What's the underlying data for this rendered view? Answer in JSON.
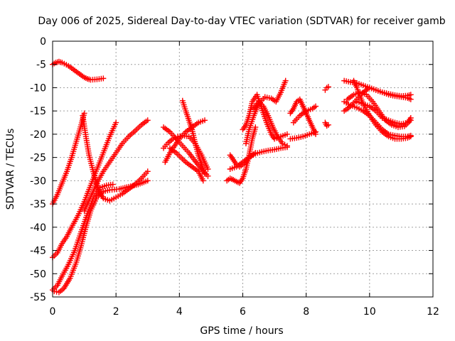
{
  "chart_data": {
    "type": "scatter",
    "title": "Day 006 of 2025, Sidereal Day-to-day VTEC variation (SDTVAR) for receiver gamb",
    "xlabel": "GPS time / hours",
    "ylabel": "SDTVAR / TECUs",
    "xlim": [
      0,
      12
    ],
    "ylim": [
      -55,
      0
    ],
    "xticks": [
      "0",
      "2",
      "4",
      "6",
      "8",
      "10",
      "12"
    ],
    "yticks": [
      "0",
      "-5",
      "-10",
      "-15",
      "-20",
      "-25",
      "-30",
      "-35",
      "-40",
      "-45",
      "-50",
      "-55"
    ],
    "grid": true,
    "marker": "plus",
    "color": "#ff0000",
    "series": [
      {
        "x": [
          0.0,
          0.1,
          0.2,
          0.3,
          0.5,
          0.7,
          0.9,
          1.0,
          1.1,
          1.2,
          1.4,
          1.6
        ],
        "y": [
          -5.0,
          -4.6,
          -4.4,
          -4.6,
          -5.3,
          -6.3,
          -7.3,
          -7.8,
          -8.1,
          -8.3,
          -8.2,
          -8.0
        ]
      },
      {
        "x": [
          0.0,
          0.15,
          0.3,
          0.45,
          0.6,
          0.75,
          0.9,
          1.0
        ],
        "y": [
          -35.0,
          -33.0,
          -30.5,
          -28.0,
          -25.0,
          -21.5,
          -18.0,
          -15.5
        ]
      },
      {
        "x": [
          0.95,
          1.05,
          1.15,
          1.3,
          1.45,
          1.6,
          1.8,
          2.0,
          2.2,
          2.4,
          2.6,
          2.8,
          3.0
        ],
        "y": [
          -16.0,
          -20.5,
          -24.5,
          -28.5,
          -32.0,
          -33.8,
          -34.3,
          -33.6,
          -32.8,
          -31.8,
          -30.8,
          -29.5,
          -28.0
        ]
      },
      {
        "x": [
          0.0,
          0.15,
          0.3,
          0.45,
          0.6,
          0.8,
          1.0,
          1.2,
          1.4,
          1.6,
          1.8,
          2.0
        ],
        "y": [
          -46.5,
          -45.5,
          -43.5,
          -42.0,
          -40.0,
          -37.5,
          -34.5,
          -31.0,
          -27.5,
          -24.0,
          -20.5,
          -17.5
        ]
      },
      {
        "x": [
          0.0,
          0.15,
          0.3,
          0.5,
          0.7,
          0.9,
          1.1,
          1.3,
          1.5,
          1.7,
          1.9
        ],
        "y": [
          -53.5,
          -52.5,
          -50.5,
          -48.0,
          -45.0,
          -41.0,
          -37.0,
          -33.5,
          -31.5,
          -31.0,
          -30.8
        ]
      },
      {
        "x": [
          0.05,
          0.2,
          0.35,
          0.55,
          0.75,
          0.9,
          1.05,
          1.2,
          1.4,
          1.6,
          1.8,
          2.1,
          2.4,
          2.7,
          3.0
        ],
        "y": [
          -53.8,
          -54.0,
          -53.2,
          -51.0,
          -47.5,
          -44.0,
          -40.0,
          -36.5,
          -33.5,
          -32.3,
          -32.0,
          -31.8,
          -31.3,
          -30.8,
          -30.0
        ]
      },
      {
        "x": [
          1.0,
          1.2,
          1.4,
          1.6,
          1.8,
          2.0,
          2.2,
          2.4,
          2.6,
          2.8,
          3.0
        ],
        "y": [
          -36.5,
          -33.5,
          -30.5,
          -28.0,
          -26.0,
          -24.0,
          -22.0,
          -20.5,
          -19.3,
          -18.0,
          -17.0
        ]
      },
      {
        "x": [
          3.5,
          3.7,
          3.9,
          4.1,
          4.3,
          4.5,
          4.7,
          4.9
        ],
        "y": [
          -18.5,
          -19.5,
          -21.0,
          -22.5,
          -24.0,
          -25.8,
          -27.5,
          -29.0
        ]
      },
      {
        "x": [
          3.5,
          3.65,
          3.8,
          3.95,
          4.1,
          4.3,
          4.5,
          4.7,
          4.9
        ],
        "y": [
          -23.0,
          -21.8,
          -21.0,
          -20.5,
          -20.3,
          -20.5,
          -22.0,
          -24.5,
          -27.5
        ]
      },
      {
        "x": [
          3.55,
          3.7,
          3.85,
          4.0,
          4.2,
          4.4,
          4.6,
          4.8
        ],
        "y": [
          -26.0,
          -24.0,
          -22.5,
          -21.0,
          -19.5,
          -18.5,
          -17.5,
          -17.0
        ]
      },
      {
        "x": [
          3.7,
          3.9,
          4.05,
          4.2,
          4.4,
          4.6,
          4.75
        ],
        "y": [
          -23.0,
          -24.0,
          -25.0,
          -26.0,
          -27.0,
          -28.0,
          -30.0
        ]
      },
      {
        "x": [
          4.1,
          4.2,
          4.3,
          4.4,
          4.5,
          4.6,
          4.7,
          4.8
        ],
        "y": [
          -12.8,
          -15.0,
          -17.0,
          -19.0,
          -22.0,
          -24.5,
          -26.5,
          -28.5
        ]
      },
      {
        "x": [
          5.5,
          5.6,
          5.7,
          5.8,
          5.9,
          6.0,
          6.1,
          6.2,
          6.3,
          6.4
        ],
        "y": [
          -30.0,
          -29.5,
          -29.8,
          -30.2,
          -30.5,
          -29.5,
          -27.5,
          -24.5,
          -21.0,
          -18.5
        ]
      },
      {
        "x": [
          5.6,
          5.7,
          5.8,
          5.9,
          6.0,
          6.1,
          6.2,
          6.3,
          6.4
        ],
        "y": [
          -24.5,
          -25.5,
          -26.5,
          -27.0,
          -26.5,
          -26.0,
          -25.0,
          -24.5,
          -24.0
        ]
      },
      {
        "x": [
          5.6,
          5.8,
          6.0,
          6.2,
          6.4,
          6.6,
          6.8,
          7.0,
          7.2,
          7.4
        ],
        "y": [
          -27.5,
          -27.0,
          -26.0,
          -25.0,
          -24.2,
          -23.8,
          -23.5,
          -23.3,
          -23.0,
          -22.8
        ]
      },
      {
        "x": [
          6.0,
          6.1,
          6.2,
          6.3,
          6.45,
          6.6,
          6.75,
          6.9,
          7.0,
          7.2,
          7.4
        ],
        "y": [
          -19.0,
          -18.0,
          -16.0,
          -13.0,
          -11.5,
          -14.5,
          -17.5,
          -20.0,
          -21.0,
          -20.5,
          -20.0
        ]
      },
      {
        "x": [
          6.1,
          6.2,
          6.35,
          6.5,
          6.7,
          6.9,
          7.05,
          7.2,
          7.35
        ],
        "y": [
          -22.0,
          -19.0,
          -16.0,
          -13.5,
          -12.0,
          -12.3,
          -13.0,
          -11.0,
          -8.5
        ]
      },
      {
        "x": [
          6.35,
          6.5,
          6.65,
          6.8,
          6.95,
          7.1,
          7.25,
          7.4
        ],
        "y": [
          -14.5,
          -13.0,
          -14.0,
          -16.0,
          -18.5,
          -20.5,
          -22.0,
          -22.5
        ]
      },
      {
        "x": [
          7.5,
          7.6,
          7.7,
          7.8,
          7.9,
          8.0,
          8.1,
          8.2,
          8.3
        ],
        "y": [
          -15.5,
          -14.5,
          -13.0,
          -12.5,
          -14.0,
          -15.5,
          -17.0,
          -18.5,
          -20.0
        ]
      },
      {
        "x": [
          7.5,
          7.7,
          7.9,
          8.1,
          8.3
        ],
        "y": [
          -21.0,
          -20.8,
          -20.5,
          -20.0,
          -19.5
        ]
      },
      {
        "x": [
          7.6,
          7.8,
          8.0,
          8.2,
          8.3
        ],
        "y": [
          -17.5,
          -16.0,
          -15.0,
          -14.5,
          -14.0
        ]
      },
      {
        "x": [
          8.6,
          8.65,
          8.7
        ],
        "y": [
          -10.5,
          -10.0,
          -9.8
        ]
      },
      {
        "x": [
          8.6,
          8.65,
          8.7
        ],
        "y": [
          -17.5,
          -18.2,
          -18.0
        ]
      },
      {
        "x": [
          9.2,
          9.4,
          9.6,
          9.8,
          10.0,
          10.2,
          10.4,
          10.6,
          10.8,
          11.0,
          11.2,
          11.3
        ],
        "y": [
          -8.5,
          -8.8,
          -9.0,
          -9.5,
          -10.0,
          -10.5,
          -11.0,
          -11.3,
          -11.6,
          -11.8,
          -11.7,
          -11.5
        ]
      },
      {
        "x": [
          9.2,
          9.4,
          9.6,
          9.8,
          10.0,
          10.2,
          10.4,
          10.6,
          10.8,
          11.0,
          11.2,
          11.3
        ],
        "y": [
          -15.0,
          -14.0,
          -12.5,
          -11.0,
          -10.0,
          -10.5,
          -11.0,
          -11.5,
          -11.8,
          -12.0,
          -12.2,
          -12.5
        ]
      },
      {
        "x": [
          9.2,
          9.4,
          9.6,
          9.8,
          10.0,
          10.2,
          10.4,
          10.6,
          10.8,
          11.0,
          11.2,
          11.3
        ],
        "y": [
          -13.0,
          -13.8,
          -14.3,
          -15.0,
          -16.0,
          -17.5,
          -19.0,
          -20.0,
          -20.3,
          -20.5,
          -20.5,
          -20.3
        ]
      },
      {
        "x": [
          9.3,
          9.5,
          9.7,
          9.9,
          10.1,
          10.3,
          10.5,
          10.7,
          10.9,
          11.1,
          11.3
        ],
        "y": [
          -12.5,
          -11.5,
          -11.0,
          -11.5,
          -13.0,
          -15.0,
          -17.0,
          -18.0,
          -18.5,
          -18.3,
          -17.0
        ]
      },
      {
        "x": [
          9.5,
          9.6,
          9.7,
          9.8,
          10.0,
          10.2,
          10.4,
          10.6,
          10.8,
          11.0,
          11.2,
          11.3
        ],
        "y": [
          -8.5,
          -10.0,
          -11.8,
          -13.5,
          -16.0,
          -18.0,
          -19.5,
          -20.5,
          -21.0,
          -21.0,
          -20.8,
          -20.5
        ]
      },
      {
        "x": [
          9.6,
          9.8,
          10.0,
          10.2,
          10.4,
          10.6,
          10.8,
          11.0,
          11.2,
          11.3
        ],
        "y": [
          -13.0,
          -13.5,
          -14.0,
          -15.0,
          -16.5,
          -17.0,
          -17.5,
          -17.8,
          -17.5,
          -16.5
        ]
      }
    ]
  }
}
